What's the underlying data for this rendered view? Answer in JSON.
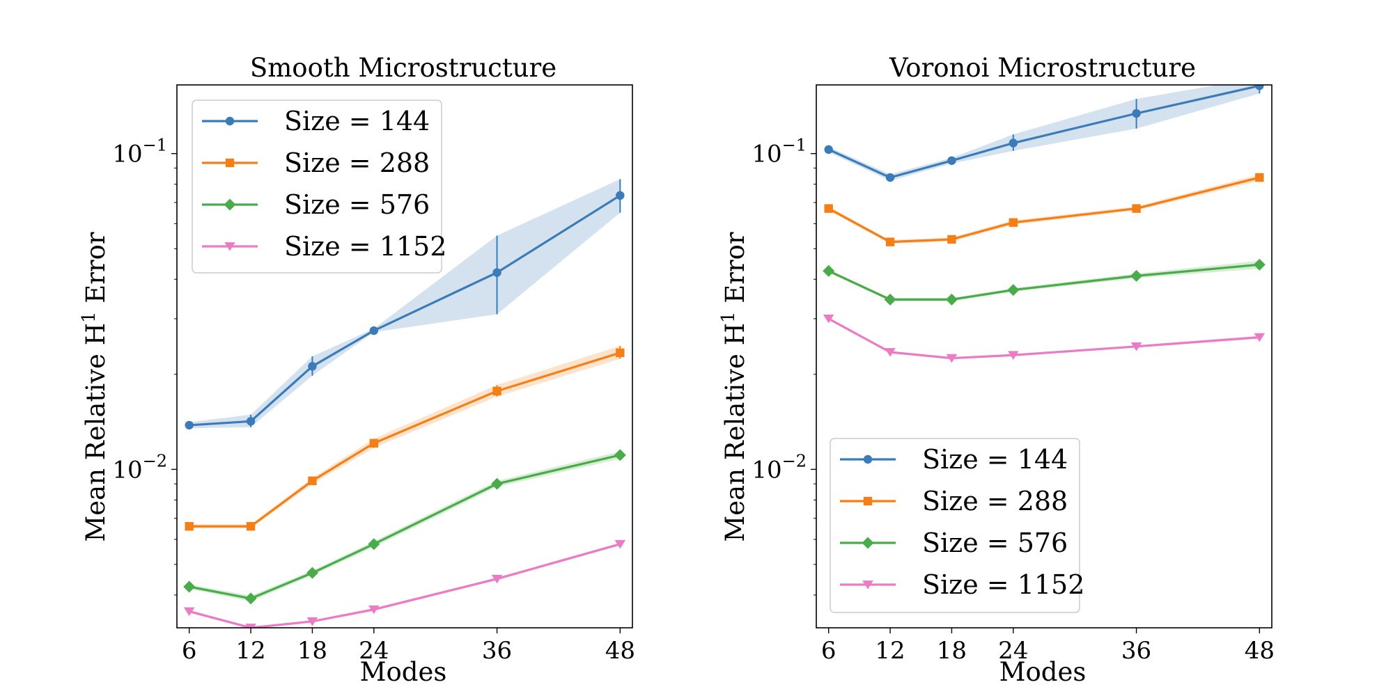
{
  "figure": {
    "width": 2000,
    "height": 1000
  },
  "chart_data": [
    {
      "type": "line",
      "title": "Smooth Microstructure",
      "xlabel": "Modes",
      "ylabel": "Mean Relative H",
      "ylabel_superscript": "1",
      "ylabel_suffix": " Error",
      "xscale": "linear",
      "yscale": "log",
      "xlim": [
        4.8,
        49.2
      ],
      "ylim": [
        0.00315,
        0.165
      ],
      "xticks": [
        6,
        12,
        18,
        24,
        36,
        48
      ],
      "xtick_labels": [
        "6",
        "12",
        "18",
        "24",
        "36",
        "48"
      ],
      "yticks": [
        0.01,
        0.1
      ],
      "ytick_labels": [
        {
          "base": "10",
          "exp": "−2"
        },
        {
          "base": "10",
          "exp": "−1"
        }
      ],
      "legend": {
        "position": "upper left"
      },
      "grid": false,
      "x": [
        6,
        12,
        18,
        24,
        36,
        48
      ],
      "series": [
        {
          "name": "Size = 144",
          "color": "#3a7bb8",
          "marker": "circle",
          "values": [
            0.0138,
            0.0142,
            0.0212,
            0.0275,
            0.042,
            0.0737
          ],
          "lower": [
            0.0135,
            0.0136,
            0.0198,
            0.0272,
            0.031,
            0.065
          ],
          "upper": [
            0.0141,
            0.0149,
            0.0228,
            0.0279,
            0.055,
            0.083
          ]
        },
        {
          "name": "Size = 288",
          "color": "#f57f17",
          "marker": "square",
          "values": [
            0.0066,
            0.0066,
            0.0092,
            0.0121,
            0.0177,
            0.0234
          ],
          "lower": [
            0.0065,
            0.0065,
            0.009,
            0.0117,
            0.017,
            0.0224
          ],
          "upper": [
            0.0067,
            0.0067,
            0.0094,
            0.0125,
            0.0185,
            0.0246
          ]
        },
        {
          "name": "Size = 576",
          "color": "#4aab4a",
          "marker": "diamond",
          "values": [
            0.00425,
            0.0039,
            0.0047,
            0.0058,
            0.009,
            0.0111
          ],
          "lower": [
            0.00418,
            0.00382,
            0.00462,
            0.00568,
            0.0088,
            0.0108
          ],
          "upper": [
            0.00432,
            0.00398,
            0.00478,
            0.00592,
            0.0092,
            0.0114
          ]
        },
        {
          "name": "Size = 1152",
          "color": "#ea7bc5",
          "marker": "triangle-down",
          "values": [
            0.00355,
            0.00315,
            0.0033,
            0.0036,
            0.0045,
            0.0058
          ],
          "lower": [
            0.00351,
            0.00312,
            0.00327,
            0.00356,
            0.00445,
            0.00574
          ],
          "upper": [
            0.00359,
            0.00318,
            0.00333,
            0.00364,
            0.00455,
            0.00586
          ]
        }
      ]
    },
    {
      "type": "line",
      "title": "Voronoi Microstructure",
      "xlabel": "Modes",
      "ylabel": "Mean Relative H",
      "ylabel_superscript": "1",
      "ylabel_suffix": " Error",
      "xscale": "linear",
      "yscale": "log",
      "xlim": [
        4.8,
        49.2
      ],
      "ylim": [
        0.00315,
        0.165
      ],
      "xticks": [
        6,
        12,
        18,
        24,
        36,
        48
      ],
      "xtick_labels": [
        "6",
        "12",
        "18",
        "24",
        "36",
        "48"
      ],
      "yticks": [
        0.01,
        0.1
      ],
      "ytick_labels": [
        {
          "base": "10",
          "exp": "−2"
        },
        {
          "base": "10",
          "exp": "−1"
        }
      ],
      "legend": {
        "position": "lower left"
      },
      "grid": false,
      "x": [
        6,
        12,
        18,
        24,
        36,
        48
      ],
      "series": [
        {
          "name": "Size = 144",
          "color": "#3a7bb8",
          "marker": "circle",
          "values": [
            0.103,
            0.084,
            0.095,
            0.108,
            0.134,
            0.164
          ],
          "lower": [
            0.101,
            0.082,
            0.093,
            0.102,
            0.12,
            0.155
          ],
          "upper": [
            0.105,
            0.086,
            0.097,
            0.115,
            0.149,
            0.174
          ]
        },
        {
          "name": "Size = 288",
          "color": "#f57f17",
          "marker": "square",
          "values": [
            0.067,
            0.0525,
            0.0535,
            0.0605,
            0.067,
            0.084
          ],
          "lower": [
            0.066,
            0.0518,
            0.0527,
            0.0595,
            0.066,
            0.082
          ],
          "upper": [
            0.068,
            0.0532,
            0.0543,
            0.0615,
            0.068,
            0.086
          ]
        },
        {
          "name": "Size = 576",
          "color": "#4aab4a",
          "marker": "diamond",
          "values": [
            0.0425,
            0.0345,
            0.0345,
            0.037,
            0.041,
            0.0445
          ],
          "lower": [
            0.042,
            0.0341,
            0.0341,
            0.0365,
            0.0403,
            0.0432
          ],
          "upper": [
            0.043,
            0.0349,
            0.0349,
            0.0375,
            0.0417,
            0.0458
          ]
        },
        {
          "name": "Size = 1152",
          "color": "#ea7bc5",
          "marker": "triangle-down",
          "values": [
            0.03,
            0.0235,
            0.0225,
            0.023,
            0.0245,
            0.0262
          ],
          "lower": [
            0.0298,
            0.0233,
            0.0223,
            0.0228,
            0.0243,
            0.0259
          ],
          "upper": [
            0.0302,
            0.0237,
            0.0227,
            0.0232,
            0.0247,
            0.0265
          ]
        }
      ]
    }
  ]
}
